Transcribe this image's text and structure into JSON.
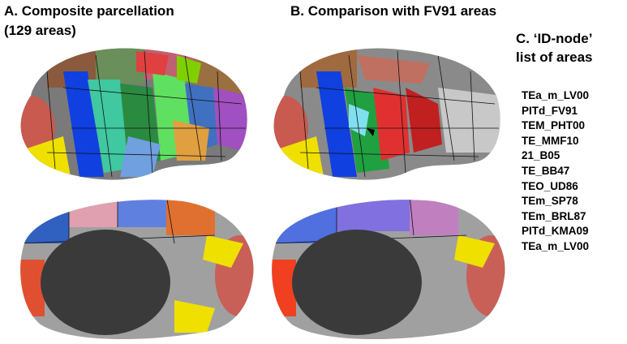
{
  "panels": [
    {
      "label": "A. Composite parcellation",
      "sublabel": "(129 areas)"
    },
    {
      "label": "B. Comparison with FV91 areas"
    },
    {
      "label": "C. ‘ID-node’",
      "sublabel": "list of areas",
      "items": [
        "TEa_m_LV00",
        "PITd_FV91",
        "TEM_PHT00",
        "TE_MMF10",
        "21_B05",
        "TE_BB47",
        "TEO_UD86",
        "TEm_SP78",
        "TEm_BRL87",
        "PITd_KMA09",
        "TEa_m_LV00"
      ]
    }
  ]
}
